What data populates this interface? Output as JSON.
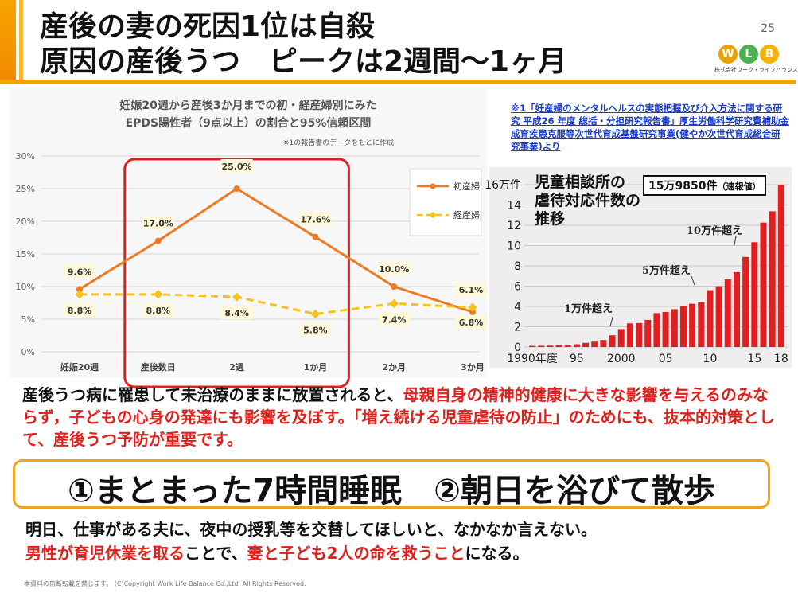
{
  "slide": {
    "title_line1": "産後の妻の死因1位は自殺",
    "title_line2": "原因の産後うつ　ピークは2週間〜1ヶ月",
    "page_number": "25",
    "logo_letters": [
      "W",
      "L",
      "B"
    ],
    "logo_colors": [
      "#e8a300",
      "#4caf50",
      "#f2b400"
    ],
    "logo_text": "株式会社ワーク・ライフバランス",
    "accent_color": "#f5a300"
  },
  "chart_data": {
    "type": "line",
    "title_line1": "妊娠20週から産後3か月までの初・経産婦別にみた",
    "title_line2": "EPDS陽性者（9点以上）の割合と95%信頼区間",
    "note": "※1の報告書のデータをもとに作成",
    "categories": [
      "妊娠20週",
      "産後数日",
      "2週",
      "1か月",
      "2か月",
      "3か月"
    ],
    "ylim": [
      0,
      30
    ],
    "y_ticks": [
      0,
      5,
      10,
      15,
      20,
      25,
      30
    ],
    "y_tick_labels": [
      "0%",
      "5%",
      "10%",
      "15%",
      "20%",
      "25%",
      "30%"
    ],
    "series": [
      {
        "name": "初産婦",
        "values": [
          9.6,
          17.0,
          25.0,
          17.6,
          10.0,
          6.1
        ],
        "labels": [
          "9.6%",
          "17.0%",
          "25.0%",
          "17.6%",
          "10.0%",
          "6.1%"
        ],
        "color": "#ee7a22",
        "dashed": false
      },
      {
        "name": "経産婦",
        "values": [
          8.8,
          8.8,
          8.4,
          5.8,
          7.4,
          6.8
        ],
        "labels": [
          "8.8%",
          "8.8%",
          "8.4%",
          "5.8%",
          "7.4%",
          "6.8%"
        ],
        "color": "#f5c11a",
        "dashed": true
      }
    ],
    "highlight_color": "#e0201c"
  },
  "reference": {
    "text": "※1「妊産婦のメンタルヘルスの実態把握及び介入方法に関する研究 平成26 年度 総括・分担研究報告書」厚生労働科学研究費補助金 成育疾患克服等次世代育成基盤研究事業(健やか次世代育成総合研究事業)より"
  },
  "abuse_chart": {
    "title_line1": "児童相談所の",
    "title_line2": "虐待対応件数の",
    "title_line3": "推移",
    "badge": "15万9850件",
    "badge_note": "（速報値）",
    "y_tick_labels": [
      "16万件",
      "14",
      "12",
      "10",
      "8",
      "6",
      "4",
      "2",
      "0"
    ],
    "x_labels": [
      "1990年度",
      "95",
      "2000",
      "05",
      "10",
      "15",
      "18"
    ],
    "annotations": [
      "1万件超え",
      "5万件超え",
      "10万件超え"
    ],
    "values": [
      0.11,
      0.13,
      0.14,
      0.16,
      0.2,
      0.27,
      0.41,
      0.53,
      0.69,
      1.16,
      1.77,
      2.33,
      2.37,
      2.67,
      3.34,
      3.45,
      3.73,
      4.06,
      4.26,
      4.42,
      5.6,
      5.99,
      6.67,
      7.38,
      8.88,
      10.33,
      12.26,
      13.38,
      15.98
    ],
    "bar_color": "#e02020"
  },
  "body": {
    "para_black1": "産後うつ病に罹患して未治療のままに放置されると、",
    "para_red1": "母親自身の精神的健康に大きな影響を与えるのみならず，子どもの心身の発達にも影響を及ぼす。「増え続ける児童虐待の防止」のためにも、抜本的対策として、産後うつ予防が重要です。",
    "highlight": "①まとまった7時間睡眠　②朝日を浴びて散歩",
    "line1": "明日、仕事がある夫に、夜中の授乳等を交替してほしいと、なかなか言えない。",
    "line2_red1": "男性が育児休業を取る",
    "line2_black1": "ことで、",
    "line2_red2": "妻と子ども2人の命を救うこと",
    "line2_black2": "になる。"
  },
  "footer": {
    "text": "本資料の無断転載を禁じます。 (C)Copyright  Work Life Balance Co.,Ltd. All Rights Reserved."
  }
}
